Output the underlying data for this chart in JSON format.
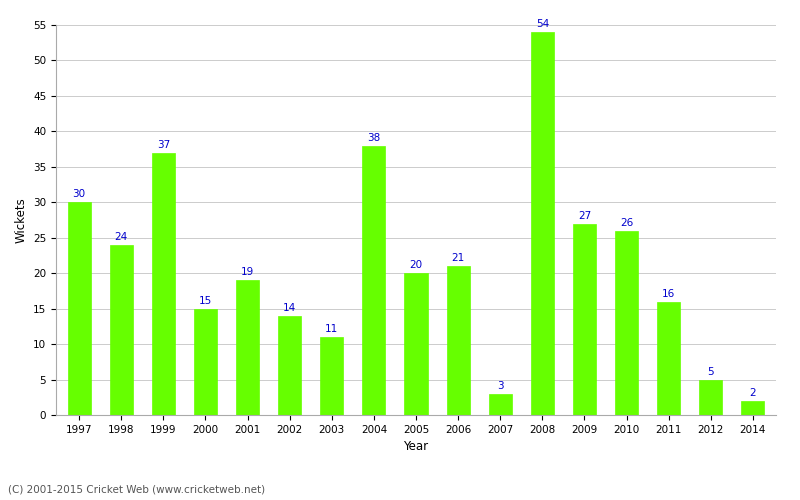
{
  "years": [
    "1997",
    "1998",
    "1999",
    "2000",
    "2001",
    "2002",
    "2003",
    "2004",
    "2005",
    "2006",
    "2007",
    "2008",
    "2009",
    "2010",
    "2011",
    "2012",
    "2014"
  ],
  "values": [
    30,
    24,
    37,
    15,
    19,
    14,
    11,
    38,
    20,
    21,
    3,
    54,
    27,
    26,
    16,
    5,
    2
  ],
  "bar_color": "#66ff00",
  "label_color": "#0000cc",
  "xlabel": "Year",
  "ylabel": "Wickets",
  "ylim": [
    0,
    55
  ],
  "yticks": [
    0,
    5,
    10,
    15,
    20,
    25,
    30,
    35,
    40,
    45,
    50,
    55
  ],
  "background_color": "#ffffff",
  "grid_color": "#cccccc",
  "label_fontsize": 7.5,
  "axis_label_fontsize": 8.5,
  "tick_fontsize": 7.5,
  "bar_width": 0.55,
  "footer_text": "(C) 2001-2015 Cricket Web (www.cricketweb.net)",
  "footer_fontsize": 7.5,
  "footer_color": "#555555"
}
